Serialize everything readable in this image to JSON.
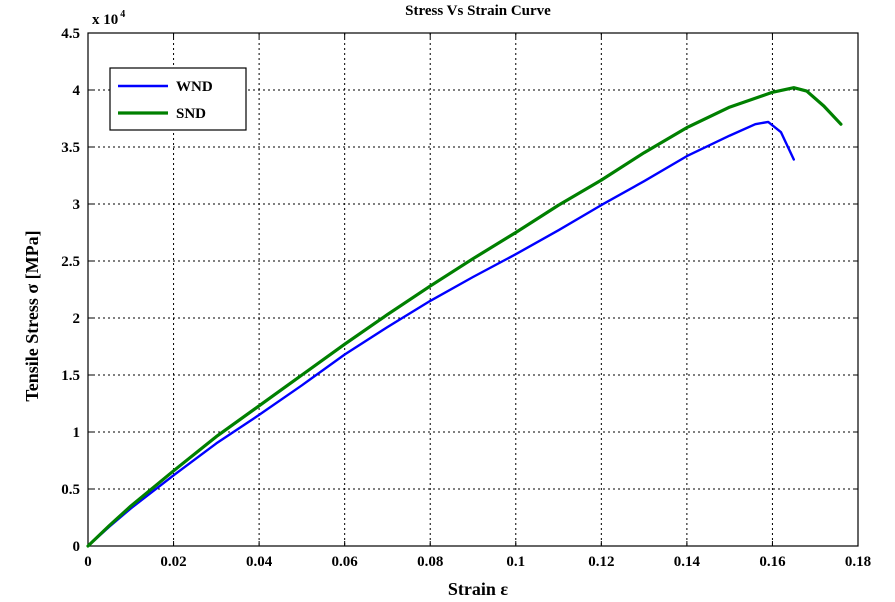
{
  "chart_data": {
    "type": "line",
    "title": "Stress Vs Strain Curve",
    "xlabel": "Strain ε",
    "ylabel": "Tensile Stress σ [MPa]",
    "y_multiplier_base": "x 10",
    "y_multiplier_exponent": "4",
    "xlim": [
      0,
      0.18
    ],
    "ylim": [
      0,
      4.5
    ],
    "x_ticks": [
      "0",
      "0.02",
      "0.04",
      "0.06",
      "0.08",
      "0.1",
      "0.12",
      "0.14",
      "0.16",
      "0.18"
    ],
    "y_ticks": [
      "0",
      "0.5",
      "1",
      "1.5",
      "2",
      "2.5",
      "3",
      "3.5",
      "4",
      "4.5"
    ],
    "grid": true,
    "legend_position": "top-left",
    "series": [
      {
        "name": "WND",
        "color": "#0000ff",
        "x": [
          0,
          0.005,
          0.01,
          0.02,
          0.03,
          0.04,
          0.05,
          0.06,
          0.07,
          0.08,
          0.09,
          0.1,
          0.11,
          0.12,
          0.13,
          0.14,
          0.15,
          0.156,
          0.159,
          0.162,
          0.165
        ],
        "y": [
          0,
          0.17,
          0.33,
          0.62,
          0.9,
          1.15,
          1.41,
          1.68,
          1.92,
          2.15,
          2.36,
          2.56,
          2.77,
          2.99,
          3.2,
          3.42,
          3.6,
          3.7,
          3.72,
          3.63,
          3.39
        ]
      },
      {
        "name": "SND",
        "color": "#008000",
        "x": [
          0,
          0.005,
          0.01,
          0.02,
          0.03,
          0.04,
          0.05,
          0.06,
          0.07,
          0.08,
          0.09,
          0.1,
          0.11,
          0.12,
          0.13,
          0.14,
          0.15,
          0.16,
          0.165,
          0.168,
          0.172,
          0.176
        ],
        "y": [
          0,
          0.18,
          0.35,
          0.66,
          0.96,
          1.23,
          1.5,
          1.77,
          2.03,
          2.28,
          2.52,
          2.75,
          2.99,
          3.21,
          3.45,
          3.67,
          3.85,
          3.98,
          4.02,
          3.99,
          3.86,
          3.7
        ]
      }
    ]
  }
}
